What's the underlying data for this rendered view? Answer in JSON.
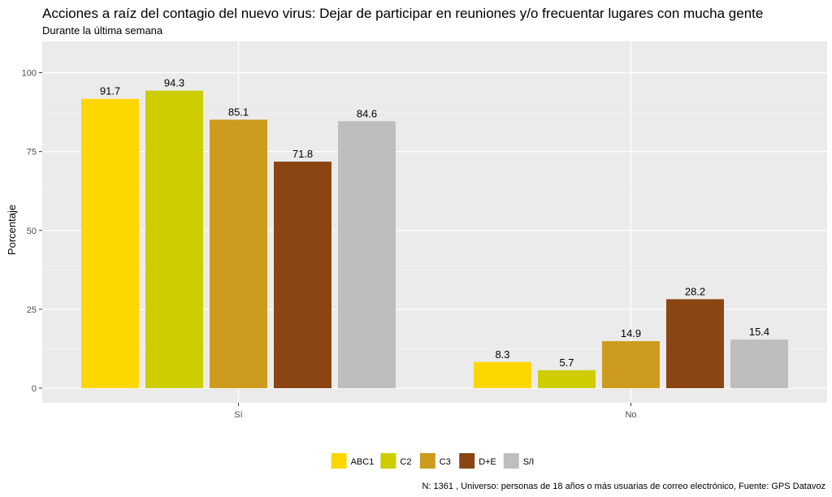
{
  "chart_data": {
    "type": "bar",
    "title": "Acciones a raíz del contagio del nuevo virus: Dejar de participar en reuniones y/o frecuentar lugares con mucha gente",
    "subtitle": "Durante la última semana",
    "xlabel": "",
    "ylabel": "Porcentaje",
    "categories": [
      "Sí",
      "No"
    ],
    "series": [
      {
        "name": "ABC1",
        "color": "#FFD700",
        "values": [
          91.7,
          8.3
        ]
      },
      {
        "name": "C2",
        "color": "#CDCD00",
        "values": [
          94.3,
          5.7
        ]
      },
      {
        "name": "C3",
        "color": "#CD9B1D",
        "values": [
          85.1,
          14.9
        ]
      },
      {
        "name": "D+E",
        "color": "#8B4513",
        "values": [
          71.8,
          28.2
        ]
      },
      {
        "name": "S/I",
        "color": "#BEBEBE",
        "values": [
          84.6,
          15.4
        ]
      }
    ],
    "ylim": [
      0,
      108
    ],
    "yticks": [
      0,
      25,
      50,
      75,
      100
    ],
    "grid": true,
    "legend_position": "bottom",
    "caption": "N: 1361 , Universo: personas de 18 años o más usuarias de correo electrónico, Fuente: GPS Datavoz"
  }
}
